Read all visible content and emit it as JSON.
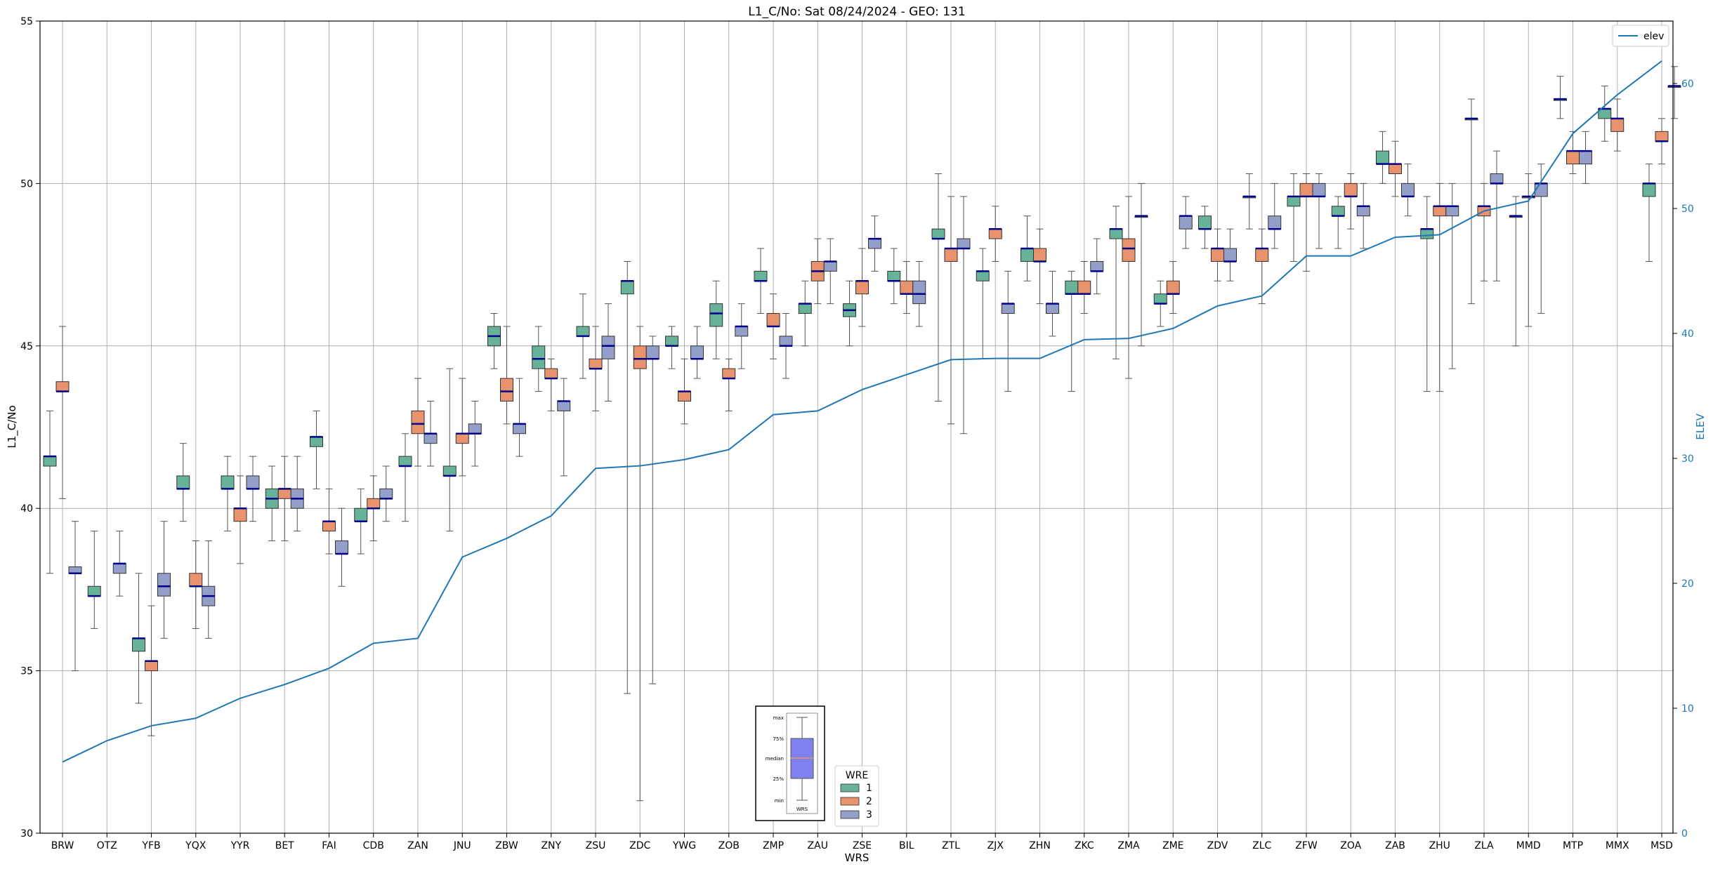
{
  "chart_data": {
    "type": "box",
    "title": "L1_C/No: Sat 08/24/2024 - GEO: 131",
    "xlabel": "WRS",
    "ylabel": "L1_C/No",
    "ylim": [
      30,
      55
    ],
    "yticks": [
      30,
      35,
      40,
      45,
      50,
      55
    ],
    "y2label": "ELEV",
    "y2lim": [
      0,
      65
    ],
    "y2ticks": [
      0,
      10,
      20,
      30,
      40,
      50,
      60
    ],
    "grid": true,
    "categories": [
      "BRW",
      "OTZ",
      "YFB",
      "YQX",
      "YYR",
      "BET",
      "FAI",
      "CDB",
      "ZAN",
      "JNU",
      "ZBW",
      "ZNY",
      "ZSU",
      "ZDC",
      "YWG",
      "ZOB",
      "ZMP",
      "ZAU",
      "ZSE",
      "BIL",
      "ZTL",
      "ZJX",
      "ZHN",
      "ZKC",
      "ZMA",
      "ZME",
      "ZDV",
      "ZLC",
      "ZFW",
      "ZOA",
      "ZAB",
      "ZHU",
      "ZLA",
      "MMD",
      "MTP",
      "MMX",
      "MSD"
    ],
    "wre_colors": {
      "1": "#66b39a",
      "2": "#e8926e",
      "3": "#939fc8"
    },
    "boxes": [
      {
        "station": "BRW",
        "wre": 1,
        "min": 38,
        "q1": 41.3,
        "median": 41.6,
        "q3": 41.6,
        "max": 43
      },
      {
        "station": "BRW",
        "wre": 2,
        "min": 40.3,
        "q1": 43.6,
        "median": 43.6,
        "q3": 43.9,
        "max": 45.6
      },
      {
        "station": "BRW",
        "wre": 3,
        "min": 35,
        "q1": 38,
        "median": 38,
        "q3": 38.2,
        "max": 39.6
      },
      {
        "station": "OTZ",
        "wre": 1,
        "min": 36.3,
        "q1": 37.3,
        "median": 37.3,
        "q3": 37.6,
        "max": 39.3
      },
      {
        "station": "OTZ",
        "wre": 3,
        "min": 37.3,
        "q1": 38,
        "median": 38.3,
        "q3": 38.3,
        "max": 39.3
      },
      {
        "station": "YFB",
        "wre": 1,
        "min": 34,
        "q1": 35.6,
        "median": 36,
        "q3": 36,
        "max": 38
      },
      {
        "station": "YFB",
        "wre": 2,
        "min": 33,
        "q1": 35,
        "median": 35.3,
        "q3": 35.3,
        "max": 37
      },
      {
        "station": "YFB",
        "wre": 3,
        "min": 36,
        "q1": 37.3,
        "median": 37.6,
        "q3": 38,
        "max": 39.6
      },
      {
        "station": "YQX",
        "wre": 1,
        "min": 39.6,
        "q1": 40.6,
        "median": 40.6,
        "q3": 41,
        "max": 42
      },
      {
        "station": "YQX",
        "wre": 2,
        "min": 36.3,
        "q1": 37.6,
        "median": 37.6,
        "q3": 38,
        "max": 39
      },
      {
        "station": "YQX",
        "wre": 3,
        "min": 36,
        "q1": 37,
        "median": 37.3,
        "q3": 37.6,
        "max": 39
      },
      {
        "station": "YYR",
        "wre": 1,
        "min": 39.3,
        "q1": 40.6,
        "median": 40.6,
        "q3": 41,
        "max": 41.6
      },
      {
        "station": "YYR",
        "wre": 2,
        "min": 38.3,
        "q1": 39.6,
        "median": 40,
        "q3": 40,
        "max": 41
      },
      {
        "station": "YYR",
        "wre": 3,
        "min": 39.6,
        "q1": 40.6,
        "median": 40.6,
        "q3": 41,
        "max": 41.6
      },
      {
        "station": "BET",
        "wre": 1,
        "min": 39,
        "q1": 40,
        "median": 40.3,
        "q3": 40.6,
        "max": 41.3
      },
      {
        "station": "BET",
        "wre": 2,
        "min": 39,
        "q1": 40.3,
        "median": 40.6,
        "q3": 40.6,
        "max": 41.6
      },
      {
        "station": "BET",
        "wre": 3,
        "min": 39.3,
        "q1": 40,
        "median": 40.3,
        "q3": 40.6,
        "max": 41.6
      },
      {
        "station": "FAI",
        "wre": 1,
        "min": 40.6,
        "q1": 41.9,
        "median": 42.2,
        "q3": 42.2,
        "max": 43
      },
      {
        "station": "FAI",
        "wre": 2,
        "min": 38.6,
        "q1": 39.3,
        "median": 39.6,
        "q3": 39.6,
        "max": 40.6
      },
      {
        "station": "FAI",
        "wre": 3,
        "min": 37.6,
        "q1": 38.6,
        "median": 38.6,
        "q3": 39,
        "max": 40
      },
      {
        "station": "CDB",
        "wre": 1,
        "min": 38.6,
        "q1": 39.6,
        "median": 39.6,
        "q3": 40,
        "max": 40.6
      },
      {
        "station": "CDB",
        "wre": 2,
        "min": 39,
        "q1": 40,
        "median": 40,
        "q3": 40.3,
        "max": 41
      },
      {
        "station": "CDB",
        "wre": 3,
        "min": 39.6,
        "q1": 40.3,
        "median": 40.3,
        "q3": 40.6,
        "max": 41.3
      },
      {
        "station": "ZAN",
        "wre": 1,
        "min": 39.6,
        "q1": 41.3,
        "median": 41.3,
        "q3": 41.6,
        "max": 42.3
      },
      {
        "station": "ZAN",
        "wre": 2,
        "min": 41.3,
        "q1": 42.3,
        "median": 42.6,
        "q3": 43,
        "max": 44
      },
      {
        "station": "ZAN",
        "wre": 3,
        "min": 41.3,
        "q1": 42,
        "median": 42.3,
        "q3": 42.3,
        "max": 43.3
      },
      {
        "station": "JNU",
        "wre": 1,
        "min": 39.3,
        "q1": 41,
        "median": 41,
        "q3": 41.3,
        "max": 44.3
      },
      {
        "station": "JNU",
        "wre": 2,
        "min": 41,
        "q1": 42,
        "median": 42.3,
        "q3": 42.3,
        "max": 44
      },
      {
        "station": "JNU",
        "wre": 3,
        "min": 41.3,
        "q1": 42.3,
        "median": 42.3,
        "q3": 42.6,
        "max": 43.3
      },
      {
        "station": "ZBW",
        "wre": 1,
        "min": 44.3,
        "q1": 45,
        "median": 45.3,
        "q3": 45.6,
        "max": 46
      },
      {
        "station": "ZBW",
        "wre": 2,
        "min": 42.6,
        "q1": 43.3,
        "median": 43.6,
        "q3": 44,
        "max": 45.6
      },
      {
        "station": "ZBW",
        "wre": 3,
        "min": 41.6,
        "q1": 42.3,
        "median": 42.6,
        "q3": 42.6,
        "max": 44
      },
      {
        "station": "ZNY",
        "wre": 1,
        "min": 43.6,
        "q1": 44.3,
        "median": 44.6,
        "q3": 45,
        "max": 45.6
      },
      {
        "station": "ZNY",
        "wre": 2,
        "min": 43,
        "q1": 44,
        "median": 44,
        "q3": 44.3,
        "max": 44.6
      },
      {
        "station": "ZNY",
        "wre": 3,
        "min": 41,
        "q1": 43,
        "median": 43.3,
        "q3": 43.3,
        "max": 44
      },
      {
        "station": "ZSU",
        "wre": 1,
        "min": 44,
        "q1": 45.3,
        "median": 45.3,
        "q3": 45.6,
        "max": 46.6
      },
      {
        "station": "ZSU",
        "wre": 2,
        "min": 43,
        "q1": 44.3,
        "median": 44.3,
        "q3": 44.6,
        "max": 45.6
      },
      {
        "station": "ZSU",
        "wre": 3,
        "min": 43.3,
        "q1": 44.6,
        "median": 45,
        "q3": 45.3,
        "max": 46.3
      },
      {
        "station": "ZDC",
        "wre": 1,
        "min": 34.3,
        "q1": 46.6,
        "median": 47,
        "q3": 47,
        "max": 47.6
      },
      {
        "station": "ZDC",
        "wre": 2,
        "min": 31,
        "q1": 44.3,
        "median": 44.6,
        "q3": 45,
        "max": 45.6
      },
      {
        "station": "ZDC",
        "wre": 3,
        "min": 34.6,
        "q1": 44.6,
        "median": 44.6,
        "q3": 45,
        "max": 45.3
      },
      {
        "station": "YWG",
        "wre": 1,
        "min": 44.3,
        "q1": 45,
        "median": 45,
        "q3": 45.3,
        "max": 45.6
      },
      {
        "station": "YWG",
        "wre": 2,
        "min": 42.6,
        "q1": 43.3,
        "median": 43.6,
        "q3": 43.6,
        "max": 44.6
      },
      {
        "station": "YWG",
        "wre": 3,
        "min": 44,
        "q1": 44.6,
        "median": 44.6,
        "q3": 45,
        "max": 45.6
      },
      {
        "station": "ZOB",
        "wre": 1,
        "min": 44.6,
        "q1": 45.6,
        "median": 46,
        "q3": 46.3,
        "max": 47
      },
      {
        "station": "ZOB",
        "wre": 2,
        "min": 43,
        "q1": 44,
        "median": 44,
        "q3": 44.3,
        "max": 44.6
      },
      {
        "station": "ZOB",
        "wre": 3,
        "min": 44.3,
        "q1": 45.3,
        "median": 45.6,
        "q3": 45.6,
        "max": 46.3
      },
      {
        "station": "ZMP",
        "wre": 1,
        "min": 46,
        "q1": 47,
        "median": 47,
        "q3": 47.3,
        "max": 48
      },
      {
        "station": "ZMP",
        "wre": 2,
        "min": 44.6,
        "q1": 45.6,
        "median": 45.6,
        "q3": 46,
        "max": 46.6
      },
      {
        "station": "ZMP",
        "wre": 3,
        "min": 44,
        "q1": 45,
        "median": 45,
        "q3": 45.3,
        "max": 46
      },
      {
        "station": "ZAU",
        "wre": 1,
        "min": 45,
        "q1": 46,
        "median": 46.3,
        "q3": 46.3,
        "max": 47
      },
      {
        "station": "ZAU",
        "wre": 2,
        "min": 46.3,
        "q1": 47,
        "median": 47.3,
        "q3": 47.6,
        "max": 48.3
      },
      {
        "station": "ZAU",
        "wre": 3,
        "min": 46.3,
        "q1": 47.3,
        "median": 47.6,
        "q3": 47.6,
        "max": 48.3
      },
      {
        "station": "ZSE",
        "wre": 1,
        "min": 45,
        "q1": 45.9,
        "median": 46.1,
        "q3": 46.3,
        "max": 47
      },
      {
        "station": "ZSE",
        "wre": 2,
        "min": 45.6,
        "q1": 46.6,
        "median": 47,
        "q3": 47,
        "max": 48
      },
      {
        "station": "ZSE",
        "wre": 3,
        "min": 47.3,
        "q1": 48,
        "median": 48.3,
        "q3": 48.3,
        "max": 49
      },
      {
        "station": "BIL",
        "wre": 1,
        "min": 46.3,
        "q1": 47,
        "median": 47,
        "q3": 47.3,
        "max": 48
      },
      {
        "station": "BIL",
        "wre": 2,
        "min": 46,
        "q1": 46.6,
        "median": 46.6,
        "q3": 47,
        "max": 47.6
      },
      {
        "station": "BIL",
        "wre": 3,
        "min": 45.6,
        "q1": 46.3,
        "median": 46.6,
        "q3": 47,
        "max": 47.6
      },
      {
        "station": "ZTL",
        "wre": 1,
        "min": 43.3,
        "q1": 48.3,
        "median": 48.3,
        "q3": 48.6,
        "max": 50.3
      },
      {
        "station": "ZTL",
        "wre": 2,
        "min": 42.6,
        "q1": 47.6,
        "median": 48,
        "q3": 48,
        "max": 49.6
      },
      {
        "station": "ZTL",
        "wre": 3,
        "min": 42.3,
        "q1": 48,
        "median": 48,
        "q3": 48.3,
        "max": 49.6
      },
      {
        "station": "ZJX",
        "wre": 1,
        "min": 44.6,
        "q1": 47,
        "median": 47.3,
        "q3": 47.3,
        "max": 48
      },
      {
        "station": "ZJX",
        "wre": 2,
        "min": 47.6,
        "q1": 48.3,
        "median": 48.6,
        "q3": 48.6,
        "max": 49.3
      },
      {
        "station": "ZJX",
        "wre": 3,
        "min": 43.6,
        "q1": 46,
        "median": 46.3,
        "q3": 46.3,
        "max": 47.3
      },
      {
        "station": "ZHN",
        "wre": 1,
        "min": 47,
        "q1": 47.6,
        "median": 48,
        "q3": 48,
        "max": 49
      },
      {
        "station": "ZHN",
        "wre": 2,
        "min": 46.3,
        "q1": 47.6,
        "median": 47.6,
        "q3": 48,
        "max": 48.6
      },
      {
        "station": "ZHN",
        "wre": 3,
        "min": 45.3,
        "q1": 46,
        "median": 46.3,
        "q3": 46.3,
        "max": 47.3
      },
      {
        "station": "ZKC",
        "wre": 1,
        "min": 43.6,
        "q1": 46.6,
        "median": 46.6,
        "q3": 47,
        "max": 47.3
      },
      {
        "station": "ZKC",
        "wre": 2,
        "min": 46,
        "q1": 46.6,
        "median": 46.6,
        "q3": 47,
        "max": 47.6
      },
      {
        "station": "ZKC",
        "wre": 3,
        "min": 46.6,
        "q1": 47.3,
        "median": 47.3,
        "q3": 47.6,
        "max": 48.3
      },
      {
        "station": "ZMA",
        "wre": 1,
        "min": 44.6,
        "q1": 48.3,
        "median": 48.6,
        "q3": 48.6,
        "max": 49.3
      },
      {
        "station": "ZMA",
        "wre": 2,
        "min": 44,
        "q1": 47.6,
        "median": 48,
        "q3": 48.3,
        "max": 49.6
      },
      {
        "station": "ZMA",
        "wre": 3,
        "min": 45,
        "q1": 49,
        "median": 49,
        "q3": 49,
        "max": 50
      },
      {
        "station": "ZME",
        "wre": 1,
        "min": 45.6,
        "q1": 46.3,
        "median": 46.3,
        "q3": 46.6,
        "max": 47
      },
      {
        "station": "ZME",
        "wre": 2,
        "min": 46,
        "q1": 46.6,
        "median": 46.6,
        "q3": 47,
        "max": 47.6
      },
      {
        "station": "ZME",
        "wre": 3,
        "min": 48,
        "q1": 48.6,
        "median": 49,
        "q3": 49,
        "max": 49.6
      },
      {
        "station": "ZDV",
        "wre": 1,
        "min": 48,
        "q1": 48.6,
        "median": 48.6,
        "q3": 49,
        "max": 49.3
      },
      {
        "station": "ZDV",
        "wre": 2,
        "min": 47,
        "q1": 47.6,
        "median": 48,
        "q3": 48,
        "max": 48.6
      },
      {
        "station": "ZDV",
        "wre": 3,
        "min": 47,
        "q1": 47.6,
        "median": 47.6,
        "q3": 48,
        "max": 48.6
      },
      {
        "station": "ZLC",
        "wre": 1,
        "min": 48.6,
        "q1": 49.6,
        "median": 49.6,
        "q3": 49.6,
        "max": 50.3
      },
      {
        "station": "ZLC",
        "wre": 2,
        "min": 46.3,
        "q1": 47.6,
        "median": 48,
        "q3": 48,
        "max": 48.6
      },
      {
        "station": "ZLC",
        "wre": 3,
        "min": 48,
        "q1": 48.6,
        "median": 48.6,
        "q3": 49,
        "max": 50
      },
      {
        "station": "ZFW",
        "wre": 1,
        "min": 47.6,
        "q1": 49.3,
        "median": 49.6,
        "q3": 49.6,
        "max": 50.3
      },
      {
        "station": "ZFW",
        "wre": 2,
        "min": 47.3,
        "q1": 49.6,
        "median": 49.6,
        "q3": 50,
        "max": 50.3
      },
      {
        "station": "ZFW",
        "wre": 3,
        "min": 48,
        "q1": 49.6,
        "median": 49.6,
        "q3": 50,
        "max": 50.3
      },
      {
        "station": "ZOA",
        "wre": 1,
        "min": 48,
        "q1": 49,
        "median": 49,
        "q3": 49.3,
        "max": 49.6
      },
      {
        "station": "ZOA",
        "wre": 2,
        "min": 48.6,
        "q1": 49.6,
        "median": 49.6,
        "q3": 50,
        "max": 50.3
      },
      {
        "station": "ZOA",
        "wre": 3,
        "min": 48,
        "q1": 49,
        "median": 49.3,
        "q3": 49.3,
        "max": 50
      },
      {
        "station": "ZAB",
        "wre": 1,
        "min": 50,
        "q1": 50.6,
        "median": 50.6,
        "q3": 51,
        "max": 51.6
      },
      {
        "station": "ZAB",
        "wre": 2,
        "min": 49.6,
        "q1": 50.3,
        "median": 50.6,
        "q3": 50.6,
        "max": 51.3
      },
      {
        "station": "ZAB",
        "wre": 3,
        "min": 49,
        "q1": 49.6,
        "median": 49.6,
        "q3": 50,
        "max": 50.6
      },
      {
        "station": "ZHU",
        "wre": 1,
        "min": 43.6,
        "q1": 48.3,
        "median": 48.6,
        "q3": 48.6,
        "max": 49.6
      },
      {
        "station": "ZHU",
        "wre": 2,
        "min": 43.6,
        "q1": 49,
        "median": 49.3,
        "q3": 49.3,
        "max": 50
      },
      {
        "station": "ZHU",
        "wre": 3,
        "min": 44.3,
        "q1": 49,
        "median": 49.3,
        "q3": 49.3,
        "max": 50
      },
      {
        "station": "ZLA",
        "wre": 1,
        "min": 46.3,
        "q1": 52,
        "median": 52,
        "q3": 52,
        "max": 52.6
      },
      {
        "station": "ZLA",
        "wre": 2,
        "min": 47,
        "q1": 49,
        "median": 49.3,
        "q3": 49.3,
        "max": 50
      },
      {
        "station": "ZLA",
        "wre": 3,
        "min": 47,
        "q1": 50,
        "median": 50,
        "q3": 50.3,
        "max": 51
      },
      {
        "station": "MMD",
        "wre": 1,
        "min": 45,
        "q1": 49,
        "median": 49,
        "q3": 49,
        "max": 49.6
      },
      {
        "station": "MMD",
        "wre": 2,
        "min": 45.6,
        "q1": 49.6,
        "median": 49.6,
        "q3": 49.6,
        "max": 50.3
      },
      {
        "station": "MMD",
        "wre": 3,
        "min": 46,
        "q1": 49.6,
        "median": 50,
        "q3": 50,
        "max": 50.6
      },
      {
        "station": "MTP",
        "wre": 1,
        "min": 52,
        "q1": 52.6,
        "median": 52.6,
        "q3": 52.6,
        "max": 53.3
      },
      {
        "station": "MTP",
        "wre": 2,
        "min": 50.3,
        "q1": 50.6,
        "median": 51,
        "q3": 51,
        "max": 51.6
      },
      {
        "station": "MTP",
        "wre": 3,
        "min": 50,
        "q1": 50.6,
        "median": 51,
        "q3": 51,
        "max": 51.6
      },
      {
        "station": "MMX",
        "wre": 1,
        "min": 51.3,
        "q1": 52,
        "median": 52.3,
        "q3": 52.3,
        "max": 53
      },
      {
        "station": "MMX",
        "wre": 2,
        "min": 51,
        "q1": 51.6,
        "median": 52,
        "q3": 52,
        "max": 52.6
      },
      {
        "station": "MSD",
        "wre": 1,
        "min": 47.6,
        "q1": 49.6,
        "median": 50,
        "q3": 50,
        "max": 50.6
      },
      {
        "station": "MSD",
        "wre": 2,
        "min": 50.6,
        "q1": 51.3,
        "median": 51.3,
        "q3": 51.6,
        "max": 52
      },
      {
        "station": "MSD",
        "wre": 3,
        "min": 52,
        "q1": 53,
        "median": 53,
        "q3": 53,
        "max": 53.6
      }
    ],
    "elev_series": {
      "name": "elev",
      "color": "#1f77b4",
      "values": [
        5.7,
        7.4,
        8.6,
        9.2,
        10.8,
        11.9,
        13.2,
        15.2,
        15.6,
        22.1,
        23.6,
        25.4,
        29.2,
        29.4,
        29.9,
        30.7,
        33.5,
        33.8,
        35.5,
        36.7,
        37.9,
        38.0,
        38.0,
        39.5,
        39.6,
        40.4,
        42.2,
        43.0,
        46.2,
        46.2,
        47.7,
        47.9,
        49.8,
        50.6,
        56.0,
        59.1,
        61.8
      ]
    },
    "legend_elev": {
      "label": "elev",
      "position": "top-right"
    },
    "legend_wre": {
      "title": "WRE",
      "items": [
        "1",
        "2",
        "3"
      ],
      "position": "bottom-center"
    },
    "box_key": {
      "labels": {
        "max": "max",
        "q3": "75%",
        "median": "median",
        "q1": "25%",
        "min": "min"
      },
      "xlabel": "WRS"
    }
  }
}
